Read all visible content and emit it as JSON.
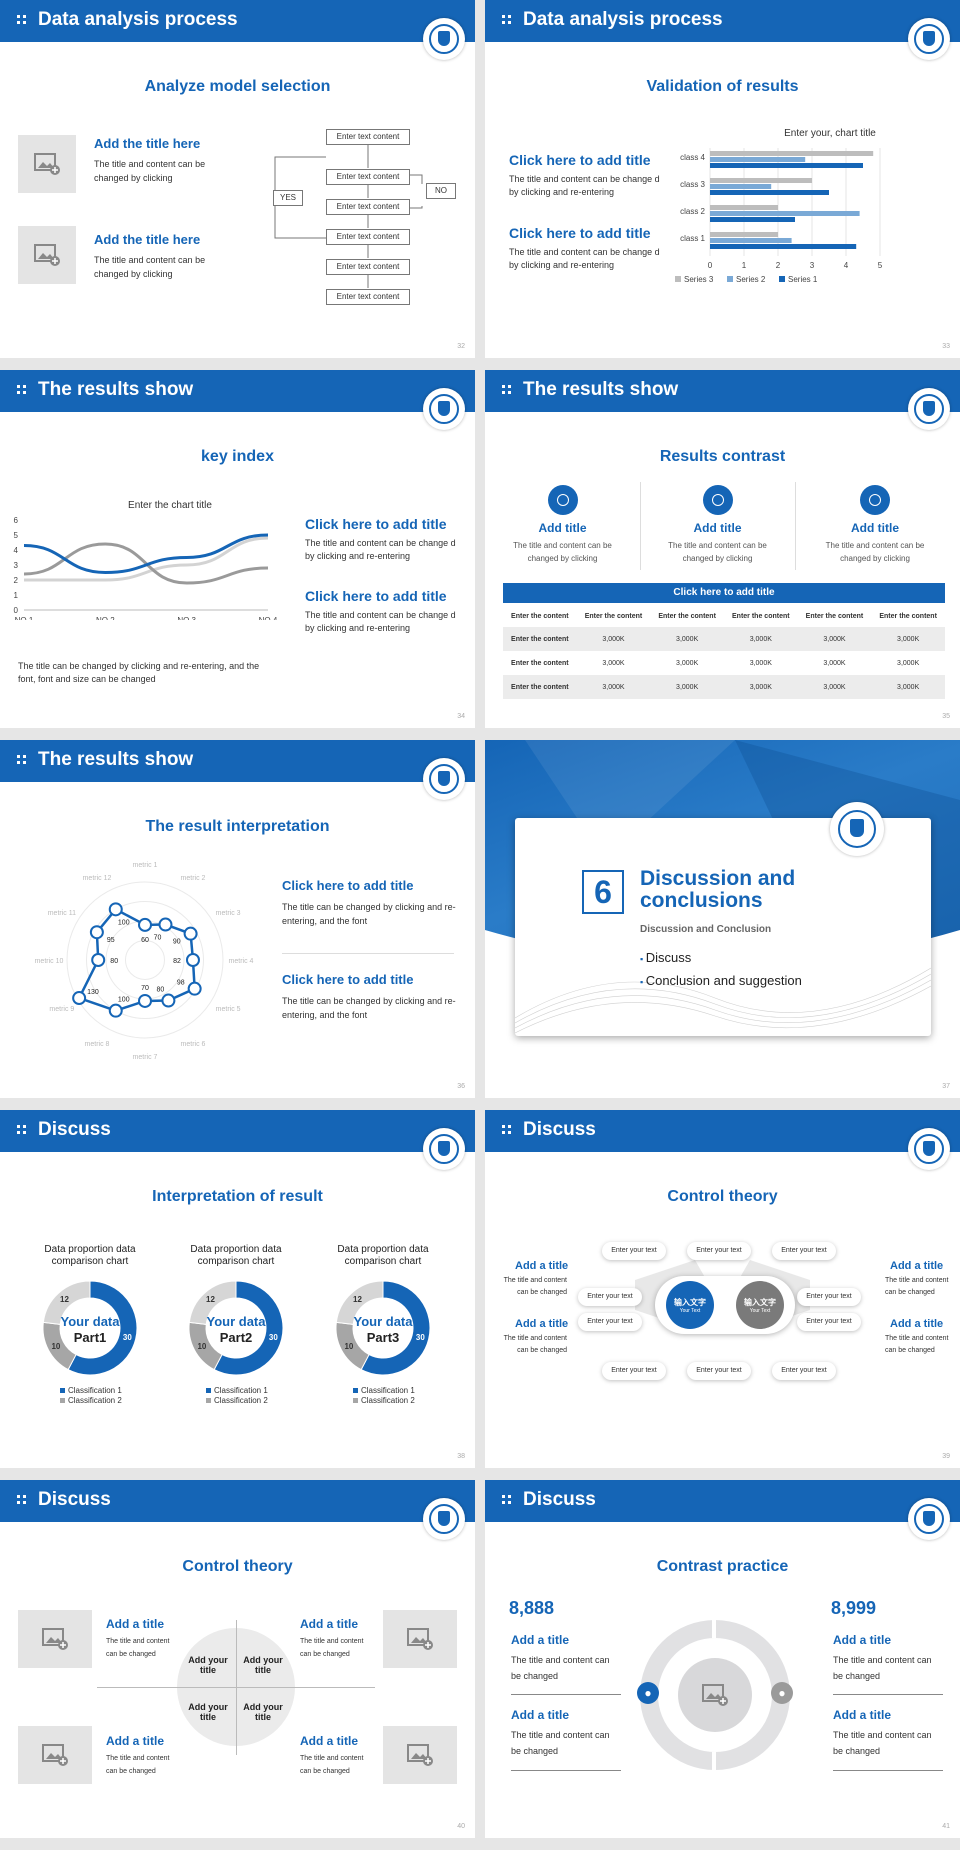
{
  "colors": {
    "primary": "#1565b6",
    "light": "#7aa9d6",
    "gray": "#bdbdbd"
  },
  "s32": {
    "header": "Data analysis process",
    "subtitle": "Analyze model selection",
    "item1_title": "Add the title here",
    "item1_body": "The title and content can be changed by clicking",
    "item2_title": "Add the title here",
    "item2_body": "The title and content can be changed by clicking",
    "flow": [
      "Enter text content",
      "Enter text content",
      "Enter text content",
      "Enter text content",
      "Enter text content",
      "Enter text content"
    ],
    "yes": "YES",
    "no": "NO",
    "page": "32"
  },
  "s33": {
    "header": "Data analysis process",
    "subtitle": "Validation of results",
    "t1": "Click here to add title",
    "b1": "The title and content can be change d by clicking and re-entering",
    "t2": "Click here to add title",
    "b2": "The title and content can be change d by clicking and re-entering",
    "page": "33"
  },
  "s34": {
    "header": "The results show",
    "subtitle": "key index",
    "t1": "Click here to add title",
    "b1": "The title and content can be change d by clicking and re-entering",
    "t2": "Click here to add title",
    "b2": "The title and content can be change d by clicking and re-entering",
    "note": "The title can be changed by clicking and re-entering, and the font, font and size can be changed",
    "page": "34"
  },
  "s35": {
    "header": "The results show",
    "subtitle": "Results contrast",
    "cols": [
      {
        "title": "Add title",
        "body": "The title and content can be changed by clicking"
      },
      {
        "title": "Add title",
        "body": "The title and content can be changed by clicking"
      },
      {
        "title": "Add title",
        "body": "The title and content can be changed by clicking"
      }
    ],
    "table_title": "Click here to add title",
    "table_head": [
      "Enter the content",
      "Enter the content",
      "Enter the content",
      "Enter the content",
      "Enter the content",
      "Enter the content"
    ],
    "rows": [
      [
        "Enter the content",
        "3,000K",
        "3,000K",
        "3,000K",
        "3,000K",
        "3,000K"
      ],
      [
        "Enter the content",
        "3,000K",
        "3,000K",
        "3,000K",
        "3,000K",
        "3,000K"
      ],
      [
        "Enter the content",
        "3,000K",
        "3,000K",
        "3,000K",
        "3,000K",
        "3,000K"
      ]
    ],
    "page": "35"
  },
  "s36": {
    "header": "The results show",
    "subtitle": "The result interpretation",
    "t1": "Click here to add  title",
    "b1": "The title can be changed by clicking and re-entering, and the font",
    "t2": "Click here to add  title",
    "b2": "The title can be changed by clicking and re-entering, and the font",
    "page": "36"
  },
  "s37": {
    "num": "6",
    "title": "Discussion and conclusions",
    "subtitle": "Discussion and Conclusion",
    "bullets": [
      "Discuss",
      "Conclusion and suggestion"
    ],
    "page": "37"
  },
  "s38": {
    "header": "Discuss",
    "subtitle": "Interpretation of result",
    "donuts": [
      {
        "title": "Data proportion data comparison chart",
        "center1": "Your data",
        "center2": "Part1"
      },
      {
        "title": "Data proportion data comparison chart",
        "center1": "Your data",
        "center2": "Part2"
      },
      {
        "title": "Data proportion data comparison chart",
        "center1": "Your data",
        "center2": "Part3"
      }
    ],
    "legend": [
      "Classification 1",
      "Classification 2"
    ],
    "page": "38"
  },
  "s39": {
    "header": "Discuss",
    "subtitle": "Control theory",
    "left": [
      {
        "title": "Add a title",
        "body": "The title and content can be changed"
      },
      {
        "title": "Add a title",
        "body": "The title and content can be changed"
      }
    ],
    "right": [
      {
        "title": "Add a title",
        "body": "The title and content can be changed"
      },
      {
        "title": "Add a title",
        "body": "The title and content can be changed"
      }
    ],
    "pill": "Enter your text",
    "circle_cn": "输入文字",
    "circle_en": "Your Text",
    "page": "39"
  },
  "s40": {
    "header": "Discuss",
    "subtitle": "Control theory",
    "items": [
      {
        "title": "Add a title",
        "body": "The title and content can be changed"
      },
      {
        "title": "Add a title",
        "body": "The title and content can be changed"
      },
      {
        "title": "Add a title",
        "body": "The title and content can be changed"
      },
      {
        "title": "Add a title",
        "body": "The title and content can be changed"
      }
    ],
    "quad": "Add your title",
    "page": "40"
  },
  "s41": {
    "header": "Discuss",
    "subtitle": "Contrast practice",
    "n1": "8,888",
    "n2": "8,999",
    "items": [
      {
        "title": "Add a title",
        "body": "The title and content can be changed"
      },
      {
        "title": "Add a title",
        "body": "The title and content can be changed"
      },
      {
        "title": "Add a title",
        "body": "The title and content can be changed"
      },
      {
        "title": "Add a title",
        "body": "The title and content can be changed"
      }
    ],
    "page": "41"
  },
  "chart_data": [
    {
      "type": "bar",
      "orientation": "horizontal",
      "title": "Enter your, chart title",
      "categories": [
        "class 1",
        "class 2",
        "class 3",
        "class 4"
      ],
      "series": [
        {
          "name": "Series 1",
          "values": [
            4.3,
            2.5,
            3.5,
            4.5
          ]
        },
        {
          "name": "Series 2",
          "values": [
            2.4,
            4.4,
            1.8,
            2.8
          ]
        },
        {
          "name": "Series 3",
          "values": [
            2.0,
            2.0,
            3.0,
            4.8
          ]
        }
      ],
      "xlim": [
        0,
        5
      ],
      "xticks": [
        0,
        1,
        2,
        3,
        4,
        5
      ]
    },
    {
      "type": "line",
      "title": "Enter the chart title",
      "categories": [
        "NO.1",
        "NO.2",
        "NO.3",
        "NO.4"
      ],
      "series": [
        {
          "values": [
            4.3,
            2.5,
            3.5,
            5.0
          ]
        },
        {
          "values": [
            2.4,
            4.4,
            1.8,
            2.8
          ]
        },
        {
          "values": [
            2.0,
            2.0,
            3.0,
            4.8
          ]
        }
      ],
      "ylim": [
        0,
        6
      ],
      "yticks": [
        0,
        1,
        2,
        3,
        4,
        5,
        6
      ]
    },
    {
      "type": "radar",
      "axes": [
        "metric 1",
        "metric 2",
        "metric 3",
        "metric 4",
        "metric 5",
        "metric 6",
        "metric 7",
        "metric 8",
        "metric 9",
        "metric 10",
        "metric 11",
        "metric 12"
      ],
      "values": [
        60,
        70,
        90,
        82,
        98,
        80,
        70,
        100,
        130,
        80,
        95,
        100
      ]
    },
    {
      "type": "pie",
      "title": "Data proportion data comparison chart",
      "values": [
        30,
        10,
        12
      ]
    },
    {
      "type": "pie",
      "title": "Data proportion data comparison chart",
      "values": [
        30,
        10,
        12
      ]
    },
    {
      "type": "pie",
      "title": "Data proportion data comparison chart",
      "values": [
        30,
        10,
        12
      ]
    }
  ]
}
